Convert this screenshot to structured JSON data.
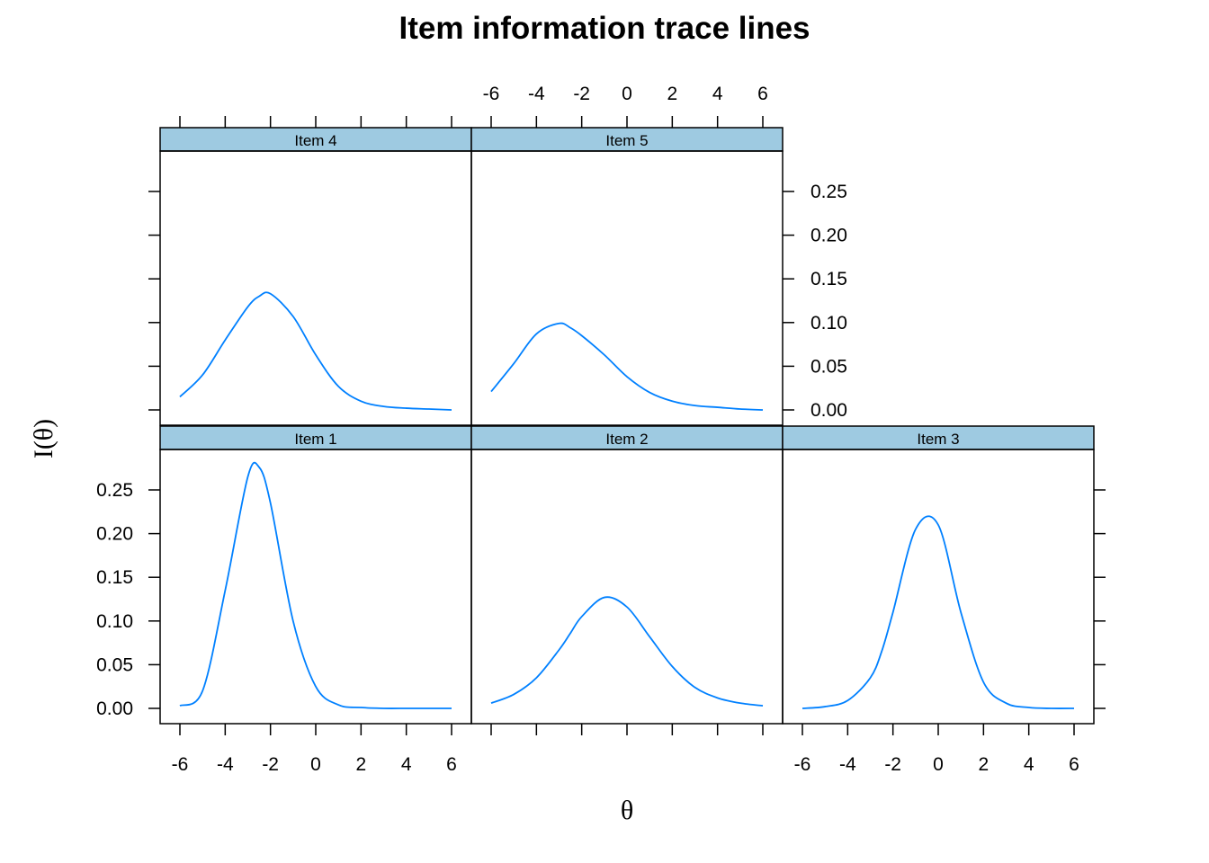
{
  "chart_data": {
    "type": "line",
    "title": "Item information trace lines",
    "xlabel": "θ",
    "ylabel": "I(θ)",
    "xlim": [
      -6,
      6
    ],
    "ylim": [
      0,
      0.28
    ],
    "x_ticks": [
      "-6",
      "-4",
      "-2",
      "0",
      "2",
      "4",
      "6"
    ],
    "y_ticks": [
      "0.00",
      "0.05",
      "0.10",
      "0.15",
      "0.20",
      "0.25"
    ],
    "grid": false,
    "layout": "3 columns x 2 rows (lattice)",
    "strip_color": "#9ecae1",
    "line_color": "#0080ff",
    "x": [
      -6,
      -5,
      -4,
      -3,
      -2.5,
      -2,
      -1,
      0,
      1,
      2,
      3,
      4,
      5,
      6
    ],
    "series": [
      {
        "name": "Item 1",
        "values": [
          0.003,
          0.02,
          0.135,
          0.265,
          0.276,
          0.235,
          0.1,
          0.025,
          0.004,
          0.001,
          0.0,
          0.0,
          0.0,
          0.0
        ]
      },
      {
        "name": "Item 2",
        "values": [
          0.006,
          0.016,
          0.035,
          0.067,
          0.086,
          0.105,
          0.127,
          0.116,
          0.082,
          0.048,
          0.024,
          0.012,
          0.006,
          0.003
        ]
      },
      {
        "name": "Item 3",
        "values": [
          0.0,
          0.002,
          0.009,
          0.035,
          0.065,
          0.11,
          0.205,
          0.21,
          0.11,
          0.03,
          0.006,
          0.001,
          0.0,
          0.0
        ]
      },
      {
        "name": "Item 4",
        "values": [
          0.015,
          0.04,
          0.08,
          0.118,
          0.13,
          0.133,
          0.107,
          0.063,
          0.027,
          0.01,
          0.004,
          0.002,
          0.001,
          0.0
        ]
      },
      {
        "name": "Item 5",
        "values": [
          0.021,
          0.053,
          0.087,
          0.099,
          0.094,
          0.085,
          0.063,
          0.038,
          0.02,
          0.01,
          0.005,
          0.003,
          0.001,
          0.0
        ]
      }
    ]
  }
}
